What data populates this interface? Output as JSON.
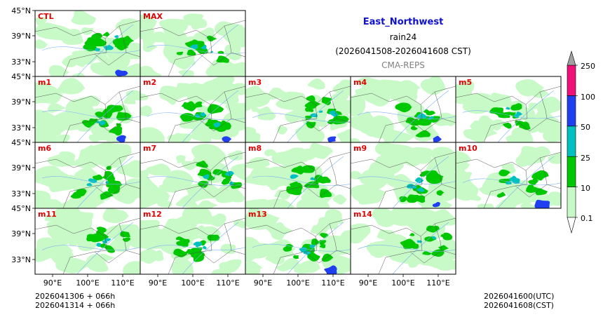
{
  "title": {
    "region": "East_Northwest",
    "variable": "rain24",
    "period": "(2026041508-2026041608 CST)",
    "source": "CMA-REPS"
  },
  "panels": [
    {
      "label": "CTL",
      "row": 0,
      "col": 0,
      "seed": 3
    },
    {
      "label": "MAX",
      "row": 0,
      "col": 1,
      "seed": 7
    },
    {
      "label": "m1",
      "row": 1,
      "col": 0,
      "seed": 11
    },
    {
      "label": "m2",
      "row": 1,
      "col": 1,
      "seed": 13
    },
    {
      "label": "m3",
      "row": 1,
      "col": 2,
      "seed": 17
    },
    {
      "label": "m4",
      "row": 1,
      "col": 3,
      "seed": 19
    },
    {
      "label": "m5",
      "row": 1,
      "col": 4,
      "seed": 23
    },
    {
      "label": "m6",
      "row": 2,
      "col": 0,
      "seed": 29
    },
    {
      "label": "m7",
      "row": 2,
      "col": 1,
      "seed": 31
    },
    {
      "label": "m8",
      "row": 2,
      "col": 2,
      "seed": 37
    },
    {
      "label": "m9",
      "row": 2,
      "col": 3,
      "seed": 41
    },
    {
      "label": "m10",
      "row": 2,
      "col": 4,
      "seed": 43
    },
    {
      "label": "m11",
      "row": 3,
      "col": 0,
      "seed": 47
    },
    {
      "label": "m12",
      "row": 3,
      "col": 1,
      "seed": 53
    },
    {
      "label": "m13",
      "row": 3,
      "col": 2,
      "seed": 59
    },
    {
      "label": "m14",
      "row": 3,
      "col": 3,
      "seed": 61
    }
  ],
  "lat_labels": [
    "45°N",
    "39°N",
    "33°N"
  ],
  "lon_labels": [
    "90°E",
    "100°E",
    "110°E"
  ],
  "colorbar": {
    "levels": [
      "0.1",
      "10",
      "25",
      "50",
      "100",
      "250"
    ],
    "colors": [
      "#c8fac8",
      "#00c800",
      "#00c0c0",
      "#1f3ff0",
      "#f0107a"
    ],
    "over_color": "#a0a0a0",
    "under_color": "#ffffff"
  },
  "footer": {
    "init_utc": "2026041306  +  066h",
    "init_cst": "2026041314  +  066h",
    "valid_utc": "2026041600(UTC)",
    "valid_cst": "2026041608(CST)"
  },
  "colors": {
    "panel_label": "#e00000",
    "title": "#1010d0",
    "source": "#808080"
  }
}
